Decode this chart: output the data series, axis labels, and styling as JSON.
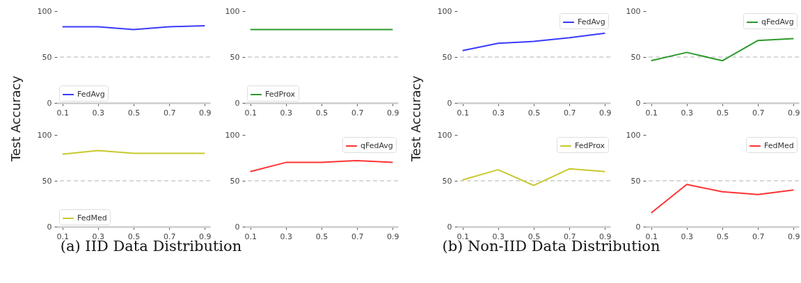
{
  "chart_data": [
    {
      "type": "line",
      "ylabel": "Test Accuracy",
      "x": [
        0.1,
        0.3,
        0.5,
        0.7,
        0.9
      ],
      "xlim": [
        0.07,
        0.93
      ],
      "xticks": [
        0.1,
        0.3,
        0.5,
        0.7,
        0.9
      ],
      "ylim": [
        0,
        100
      ],
      "yticks": [
        0,
        50,
        100
      ],
      "legend": "bottom left",
      "ref_lines": [
        {
          "axis": "y",
          "value": 50,
          "color": "#cccccc",
          "line_style": "dashed"
        }
      ],
      "series": [
        {
          "name": "FedAvg",
          "color": "#3a3aff",
          "values": [
            83,
            83,
            80,
            83,
            84
          ]
        }
      ]
    },
    {
      "type": "line",
      "x": [
        0.1,
        0.3,
        0.5,
        0.7,
        0.9
      ],
      "xlim": [
        0.07,
        0.93
      ],
      "xticks": [
        0.1,
        0.3,
        0.5,
        0.7,
        0.9
      ],
      "ylim": [
        0,
        100
      ],
      "yticks": [
        0,
        50,
        100
      ],
      "legend": "bottom left",
      "ref_lines": [
        {
          "axis": "y",
          "value": 50,
          "color": "#cccccc",
          "line_style": "dashed"
        }
      ],
      "series": [
        {
          "name": "FedProx",
          "color": "#2a9a2a",
          "values": [
            80,
            80,
            80,
            80,
            80
          ]
        }
      ]
    },
    {
      "type": "line",
      "annotations": [
        "(a) IID Data Distribution"
      ],
      "x": [
        0.1,
        0.3,
        0.5,
        0.7,
        0.9
      ],
      "xlim": [
        0.07,
        0.93
      ],
      "xticks": [
        0.1,
        0.3,
        0.5,
        0.7,
        0.9
      ],
      "ylim": [
        0,
        100
      ],
      "yticks": [
        0,
        50,
        100
      ],
      "legend": "bottom left",
      "ref_lines": [
        {
          "axis": "y",
          "value": 50,
          "color": "#cccccc",
          "line_style": "dashed"
        }
      ],
      "series": [
        {
          "name": "FedMed",
          "color": "#c8c82e",
          "values": [
            79,
            83,
            80,
            80,
            80
          ]
        }
      ]
    },
    {
      "type": "line",
      "x": [
        0.1,
        0.3,
        0.5,
        0.7,
        0.9
      ],
      "xlim": [
        0.07,
        0.93
      ],
      "xticks": [
        0.1,
        0.3,
        0.5,
        0.7,
        0.9
      ],
      "ylim": [
        0,
        100
      ],
      "yticks": [
        0,
        50,
        100
      ],
      "legend": "top right",
      "ref_lines": [
        {
          "axis": "y",
          "value": 50,
          "color": "#cccccc",
          "line_style": "dashed"
        }
      ],
      "series": [
        {
          "name": "qFedAvg",
          "color": "#ff3333",
          "values": [
            60,
            70,
            70,
            72,
            70
          ]
        }
      ]
    },
    {
      "type": "line",
      "ylabel": "Test Accuracy",
      "x": [
        0.1,
        0.3,
        0.5,
        0.7,
        0.9
      ],
      "xlim": [
        0.07,
        0.93
      ],
      "xticks": [
        0.1,
        0.3,
        0.5,
        0.7,
        0.9
      ],
      "ylim": [
        0,
        100
      ],
      "yticks": [
        0,
        50,
        100
      ],
      "legend": "top right",
      "ref_lines": [
        {
          "axis": "y",
          "value": 50,
          "color": "#cccccc",
          "line_style": "dashed"
        }
      ],
      "series": [
        {
          "name": "FedAvg",
          "color": "#3a3aff",
          "values": [
            57,
            65,
            67,
            71,
            76
          ]
        }
      ]
    },
    {
      "type": "line",
      "x": [
        0.1,
        0.3,
        0.5,
        0.7,
        0.9
      ],
      "xlim": [
        0.07,
        0.93
      ],
      "xticks": [
        0.1,
        0.3,
        0.5,
        0.7,
        0.9
      ],
      "ylim": [
        0,
        100
      ],
      "yticks": [
        0,
        50,
        100
      ],
      "legend": "top right",
      "ref_lines": [
        {
          "axis": "y",
          "value": 50,
          "color": "#cccccc",
          "line_style": "dashed"
        }
      ],
      "series": [
        {
          "name": "qFedAvg",
          "color": "#2a9a2a",
          "values": [
            46,
            55,
            46,
            68,
            70
          ]
        }
      ]
    },
    {
      "type": "line",
      "annotations": [
        "(b) Non-IID Data Distribution"
      ],
      "x": [
        0.1,
        0.3,
        0.5,
        0.7,
        0.9
      ],
      "xlim": [
        0.07,
        0.93
      ],
      "xticks": [
        0.1,
        0.3,
        0.5,
        0.7,
        0.9
      ],
      "ylim": [
        0,
        100
      ],
      "yticks": [
        0,
        50,
        100
      ],
      "legend": "top right",
      "ref_lines": [
        {
          "axis": "y",
          "value": 50,
          "color": "#cccccc",
          "line_style": "dashed"
        }
      ],
      "series": [
        {
          "name": "FedProx",
          "color": "#c8c82e",
          "values": [
            51,
            62,
            45,
            63,
            60
          ]
        }
      ]
    },
    {
      "type": "line",
      "x": [
        0.1,
        0.3,
        0.5,
        0.7,
        0.9
      ],
      "xlim": [
        0.07,
        0.93
      ],
      "xticks": [
        0.1,
        0.3,
        0.5,
        0.7,
        0.9
      ],
      "ylim": [
        0,
        100
      ],
      "yticks": [
        0,
        50,
        100
      ],
      "legend": "top right",
      "ref_lines": [
        {
          "axis": "y",
          "value": 50,
          "color": "#cccccc",
          "line_style": "dashed"
        }
      ],
      "series": [
        {
          "name": "FedMed",
          "color": "#ff3333",
          "values": [
            15,
            46,
            38,
            35,
            40
          ]
        }
      ]
    }
  ]
}
